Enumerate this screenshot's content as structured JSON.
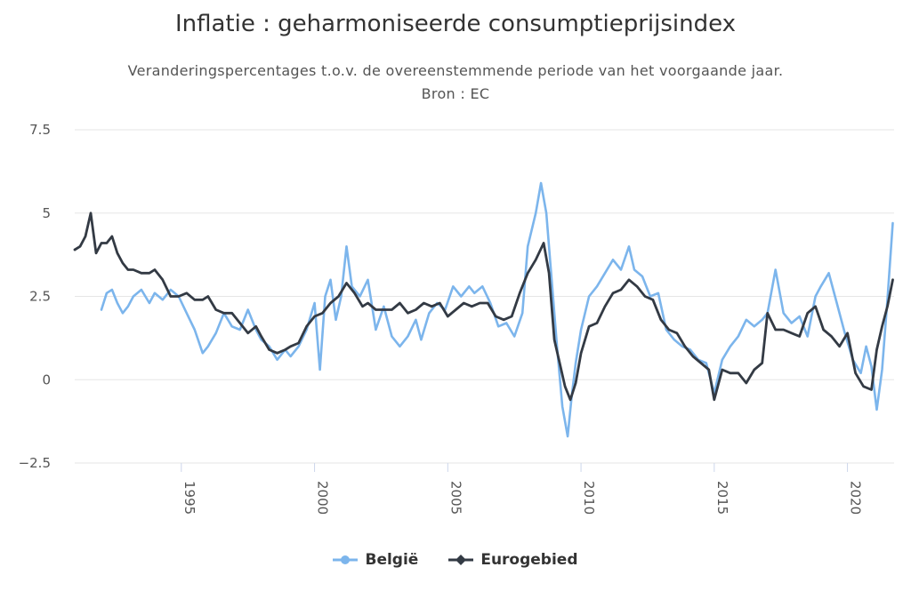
{
  "chart_data": {
    "type": "line",
    "title": "Inflatie : geharmoniseerde consumptieprijsindex",
    "subtitle": "Veranderingspercentages t.o.v. de overeenstemmende periode van het voorgaande jaar.",
    "source": "Bron : EC",
    "ylim": [
      -2.5,
      7.5
    ],
    "yticks": [
      "7.5",
      "5",
      "2.5",
      "0",
      "−2.5"
    ],
    "ytick_values": [
      7.5,
      5,
      2.5,
      0,
      -2.5
    ],
    "xlim": [
      1991.0,
      2021.75
    ],
    "xticks": [
      "1995",
      "2000",
      "2005",
      "2010",
      "2015",
      "2020"
    ],
    "xtick_values": [
      1995,
      2000,
      2005,
      2010,
      2015,
      2020
    ],
    "grid": true,
    "legend_position": "bottom-center",
    "series": [
      {
        "name": "België",
        "color": "#7cb5ec",
        "x": [
          1992.0,
          1992.2,
          1992.4,
          1992.6,
          1992.8,
          1993.0,
          1993.2,
          1993.5,
          1993.8,
          1994.0,
          1994.3,
          1994.6,
          1994.9,
          1995.2,
          1995.5,
          1995.8,
          1996.0,
          1996.3,
          1996.6,
          1996.9,
          1997.2,
          1997.5,
          1997.8,
          1998.0,
          1998.3,
          1998.6,
          1998.9,
          1999.1,
          1999.4,
          1999.7,
          2000.0,
          2000.2,
          2000.4,
          2000.6,
          2000.8,
          2001.0,
          2001.2,
          2001.4,
          2001.7,
          2002.0,
          2002.3,
          2002.6,
          2002.9,
          2003.2,
          2003.5,
          2003.8,
          2004.0,
          2004.3,
          2004.6,
          2004.9,
          2005.2,
          2005.5,
          2005.8,
          2006.0,
          2006.3,
          2006.6,
          2006.9,
          2007.2,
          2007.5,
          2007.8,
          2008.0,
          2008.3,
          2008.5,
          2008.7,
          2008.9,
          2009.1,
          2009.3,
          2009.5,
          2009.65,
          2009.8,
          2010.0,
          2010.3,
          2010.6,
          2010.9,
          2011.2,
          2011.5,
          2011.8,
          2012.0,
          2012.3,
          2012.6,
          2012.9,
          2013.2,
          2013.5,
          2013.8,
          2014.1,
          2014.4,
          2014.7,
          2015.0,
          2015.3,
          2015.6,
          2015.9,
          2016.2,
          2016.5,
          2016.8,
          2017.0,
          2017.3,
          2017.6,
          2017.9,
          2018.2,
          2018.5,
          2018.8,
          2019.0,
          2019.3,
          2019.6,
          2019.9,
          2020.2,
          2020.5,
          2020.7,
          2020.9,
          2021.1,
          2021.3,
          2021.5,
          2021.7
        ],
        "values": [
          2.1,
          2.6,
          2.7,
          2.3,
          2.0,
          2.2,
          2.5,
          2.7,
          2.3,
          2.6,
          2.4,
          2.7,
          2.5,
          2.0,
          1.5,
          0.8,
          1.0,
          1.4,
          2.0,
          1.6,
          1.5,
          2.1,
          1.5,
          1.2,
          1.0,
          0.6,
          0.9,
          0.7,
          1.0,
          1.5,
          2.3,
          0.3,
          2.5,
          3.0,
          1.8,
          2.5,
          4.0,
          2.8,
          2.5,
          3.0,
          1.5,
          2.2,
          1.3,
          1.0,
          1.3,
          1.8,
          1.2,
          2.0,
          2.3,
          2.1,
          2.8,
          2.5,
          2.8,
          2.6,
          2.8,
          2.3,
          1.6,
          1.7,
          1.3,
          2.0,
          4.0,
          5.0,
          5.9,
          5.0,
          3.0,
          1.0,
          -0.8,
          -1.7,
          -0.5,
          0.5,
          1.5,
          2.5,
          2.8,
          3.2,
          3.6,
          3.3,
          4.0,
          3.3,
          3.1,
          2.5,
          2.6,
          1.5,
          1.2,
          1.0,
          0.9,
          0.6,
          0.5,
          -0.4,
          0.6,
          1.0,
          1.3,
          1.8,
          1.6,
          1.8,
          2.0,
          3.3,
          2.0,
          1.7,
          1.9,
          1.3,
          2.5,
          2.8,
          3.2,
          2.3,
          1.4,
          0.6,
          0.2,
          1.0,
          0.4,
          -0.9,
          0.3,
          2.4,
          4.7
        ]
      },
      {
        "name": "Eurogebied",
        "color": "#333a44",
        "x": [
          1991.0,
          1991.2,
          1991.4,
          1991.6,
          1991.8,
          1992.0,
          1992.2,
          1992.4,
          1992.6,
          1992.8,
          1993.0,
          1993.2,
          1993.5,
          1993.8,
          1994.0,
          1994.3,
          1994.6,
          1994.9,
          1995.2,
          1995.5,
          1995.8,
          1996.0,
          1996.3,
          1996.6,
          1996.9,
          1997.2,
          1997.5,
          1997.8,
          1998.0,
          1998.3,
          1998.6,
          1998.9,
          1999.1,
          1999.4,
          1999.7,
          2000.0,
          2000.3,
          2000.6,
          2000.9,
          2001.2,
          2001.5,
          2001.8,
          2002.0,
          2002.3,
          2002.6,
          2002.9,
          2003.2,
          2003.5,
          2003.8,
          2004.1,
          2004.4,
          2004.7,
          2005.0,
          2005.3,
          2005.6,
          2005.9,
          2006.2,
          2006.5,
          2006.8,
          2007.1,
          2007.4,
          2007.7,
          2008.0,
          2008.3,
          2008.6,
          2008.8,
          2009.0,
          2009.2,
          2009.4,
          2009.6,
          2009.8,
          2010.0,
          2010.3,
          2010.6,
          2010.9,
          2011.2,
          2011.5,
          2011.8,
          2012.1,
          2012.4,
          2012.7,
          2013.0,
          2013.3,
          2013.6,
          2013.9,
          2014.2,
          2014.5,
          2014.8,
          2015.0,
          2015.3,
          2015.6,
          2015.9,
          2016.2,
          2016.5,
          2016.8,
          2017.0,
          2017.3,
          2017.6,
          2017.9,
          2018.2,
          2018.5,
          2018.8,
          2019.1,
          2019.4,
          2019.7,
          2020.0,
          2020.3,
          2020.6,
          2020.9,
          2021.1,
          2021.3,
          2021.5,
          2021.7
        ],
        "values": [
          3.9,
          4.0,
          4.3,
          5.0,
          3.8,
          4.1,
          4.1,
          4.3,
          3.8,
          3.5,
          3.3,
          3.3,
          3.2,
          3.2,
          3.3,
          3.0,
          2.5,
          2.5,
          2.6,
          2.4,
          2.4,
          2.5,
          2.1,
          2.0,
          2.0,
          1.7,
          1.4,
          1.6,
          1.3,
          0.9,
          0.8,
          0.9,
          1.0,
          1.1,
          1.6,
          1.9,
          2.0,
          2.3,
          2.5,
          2.9,
          2.6,
          2.2,
          2.3,
          2.1,
          2.1,
          2.1,
          2.3,
          2.0,
          2.1,
          2.3,
          2.2,
          2.3,
          1.9,
          2.1,
          2.3,
          2.2,
          2.3,
          2.3,
          1.9,
          1.8,
          1.9,
          2.6,
          3.2,
          3.6,
          4.1,
          3.2,
          1.2,
          0.5,
          -0.2,
          -0.6,
          -0.1,
          0.8,
          1.6,
          1.7,
          2.2,
          2.6,
          2.7,
          3.0,
          2.8,
          2.5,
          2.4,
          1.8,
          1.5,
          1.4,
          1.0,
          0.7,
          0.5,
          0.3,
          -0.6,
          0.3,
          0.2,
          0.2,
          -0.1,
          0.3,
          0.5,
          2.0,
          1.5,
          1.5,
          1.4,
          1.3,
          2.0,
          2.2,
          1.5,
          1.3,
          1.0,
          1.4,
          0.2,
          -0.2,
          -0.3,
          0.9,
          1.6,
          2.2,
          3.0
        ]
      }
    ]
  }
}
